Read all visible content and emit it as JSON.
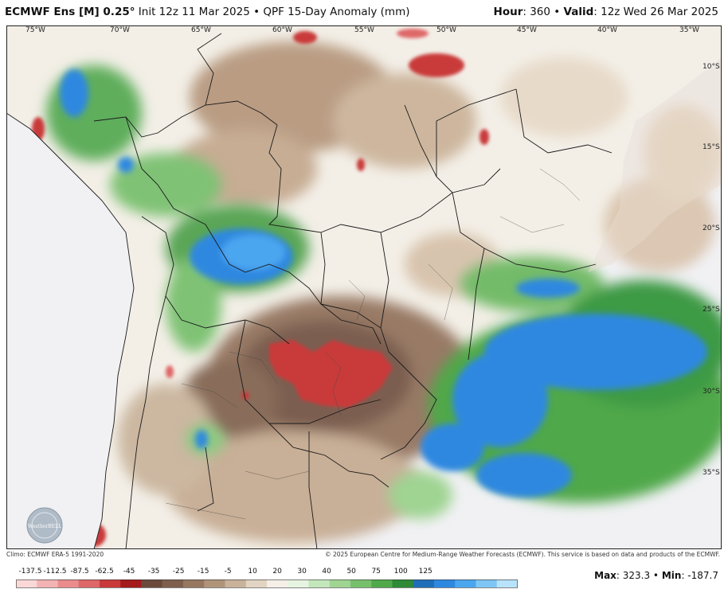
{
  "header": {
    "model": "ECMWF Ens [M] 0.25°",
    "info": "Init 12z 11 Mar 2025 • QPF 15-Day Anomaly (mm)",
    "hour_label": "Hour",
    "hour_value": ": 360 •",
    "valid_label": "Valid",
    "valid_value": ": 12z Wed 26 Mar 2025"
  },
  "map": {
    "lon_labels": [
      "75°W",
      "70°W",
      "65°W",
      "60°W",
      "55°W",
      "50°W",
      "45°W",
      "40°W",
      "35°W"
    ],
    "lat_labels": [
      "10°S",
      "15°S",
      "20°S",
      "25°S",
      "30°S",
      "35°S"
    ],
    "watermark": "WeatherBELL"
  },
  "credits": {
    "climo": "Climo: ECMWF ERA-5 1991-2020",
    "copyright": "© 2025 European Centre for Medium-Range Weather Forecasts (ECMWF). This service is based on data and products of the ECMWF."
  },
  "legend": {
    "ticks": [
      "-137.5",
      "-112.5",
      "-87.5",
      "-62.5",
      "-45",
      "-35",
      "-25",
      "-15",
      "-5",
      "10",
      "20",
      "30",
      "40",
      "50",
      "75",
      "100",
      "125"
    ],
    "colors": [
      "#fbd8d8",
      "#f3b3b3",
      "#ea8c8c",
      "#de6767",
      "#c93a3a",
      "#a51a1a",
      "#6b4a3c",
      "#7e5e4c",
      "#97775f",
      "#b09479",
      "#c8b29a",
      "#e2d4c3",
      "#f5efe8",
      "#e6f4e1",
      "#c4e6bb",
      "#9fd492",
      "#77c06b",
      "#4fa84a",
      "#2e8a37",
      "#1f6fb8",
      "#2e88e0",
      "#4ba6f0",
      "#7fc6f7",
      "#b8e3fb"
    ]
  },
  "maxmin": {
    "max_label": "Max",
    "max_value": ": 323.3 •",
    "min_label": "Min",
    "min_value": ": -187.7"
  }
}
